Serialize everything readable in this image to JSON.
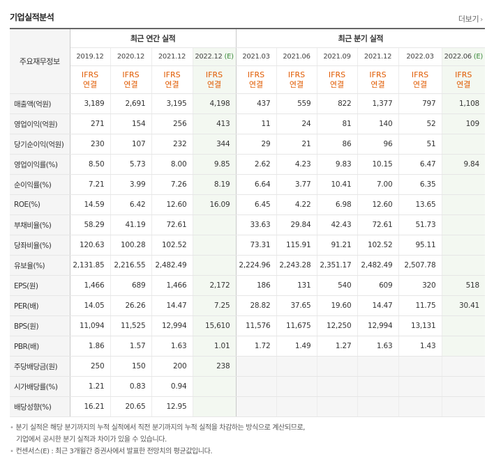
{
  "header": {
    "title": "기업실적분석",
    "more_label": "더보기"
  },
  "table": {
    "corner_label": "주요재무정보",
    "group_annual": "최근 연간 실적",
    "group_quarter": "최근 분기 실적",
    "periods": [
      "2019.12",
      "2020.12",
      "2021.12",
      "2022.12",
      "2021.03",
      "2021.06",
      "2021.09",
      "2021.12",
      "2022.03",
      "2022.06"
    ],
    "est_mark": "(E)",
    "ifrs": "IFRS",
    "consol": "연결",
    "rows": [
      {
        "label": "매출액(억원)",
        "values": [
          "3,189",
          "2,691",
          "3,195",
          "4,198",
          "437",
          "559",
          "822",
          "1,377",
          "797",
          "1,108"
        ]
      },
      {
        "label": "영업이익(억원)",
        "values": [
          "271",
          "154",
          "256",
          "413",
          "11",
          "24",
          "81",
          "140",
          "52",
          "109"
        ]
      },
      {
        "label": "당기순이익(억원)",
        "values": [
          "230",
          "107",
          "232",
          "344",
          "29",
          "21",
          "86",
          "96",
          "51",
          ""
        ]
      },
      {
        "label": "영업이익률(%)",
        "values": [
          "8.50",
          "5.73",
          "8.00",
          "9.85",
          "2.62",
          "4.23",
          "9.83",
          "10.15",
          "6.47",
          "9.84"
        ]
      },
      {
        "label": "순이익률(%)",
        "values": [
          "7.21",
          "3.99",
          "7.26",
          "8.19",
          "6.64",
          "3.77",
          "10.41",
          "7.00",
          "6.35",
          ""
        ]
      },
      {
        "label": "ROE(%)",
        "values": [
          "14.59",
          "6.42",
          "12.60",
          "16.09",
          "6.45",
          "4.22",
          "6.98",
          "12.60",
          "13.65",
          ""
        ]
      },
      {
        "label": "부채비율(%)",
        "values": [
          "58.29",
          "41.19",
          "72.61",
          "",
          "33.63",
          "29.84",
          "42.43",
          "72.61",
          "51.73",
          ""
        ]
      },
      {
        "label": "당좌비율(%)",
        "values": [
          "120.63",
          "100.28",
          "102.52",
          "",
          "73.31",
          "115.91",
          "91.21",
          "102.52",
          "95.11",
          ""
        ]
      },
      {
        "label": "유보율(%)",
        "values": [
          "2,131.85",
          "2,216.55",
          "2,482.49",
          "",
          "2,224.96",
          "2,243.28",
          "2,351.17",
          "2,482.49",
          "2,507.78",
          ""
        ]
      },
      {
        "label": "EPS(원)",
        "values": [
          "1,466",
          "689",
          "1,466",
          "2,172",
          "186",
          "131",
          "540",
          "609",
          "320",
          "518"
        ]
      },
      {
        "label": "PER(배)",
        "values": [
          "14.05",
          "26.26",
          "14.47",
          "7.25",
          "28.82",
          "37.65",
          "19.60",
          "14.47",
          "11.75",
          "30.41"
        ]
      },
      {
        "label": "BPS(원)",
        "values": [
          "11,094",
          "11,525",
          "12,994",
          "15,610",
          "11,576",
          "11,675",
          "12,250",
          "12,994",
          "13,131",
          ""
        ]
      },
      {
        "label": "PBR(배)",
        "values": [
          "1.86",
          "1.57",
          "1.63",
          "1.01",
          "1.72",
          "1.49",
          "1.27",
          "1.63",
          "1.43",
          ""
        ]
      },
      {
        "label": "주당배당금(원)",
        "values": [
          "250",
          "150",
          "200",
          "238",
          "",
          "",
          "",
          "",
          "",
          ""
        ]
      },
      {
        "label": "시가배당률(%)",
        "values": [
          "1.21",
          "0.83",
          "0.94",
          "",
          "",
          "",
          "",
          "",
          "",
          ""
        ]
      },
      {
        "label": "배당성향(%)",
        "values": [
          "16.21",
          "20.65",
          "12.95",
          "",
          "",
          "",
          "",
          "",
          "",
          ""
        ]
      }
    ]
  },
  "notes": {
    "line1": "분기 실적은 해당 분기까지의 누적 실적에서 직전 분기까지의 누적 실적을 차감하는 방식으로 계산되므로,",
    "line2": "기업에서 공시한 분기 실적과 차이가 있을 수 있습니다.",
    "line3": "컨센서스(E) : 최근 3개월간 증권사에서 발표한 전망치의 평균값입니다."
  },
  "colors": {
    "ifrs_orange": "#e05a00",
    "estimate_green": "#3a8a3a",
    "estimate_bg": "#f3f8f1"
  }
}
